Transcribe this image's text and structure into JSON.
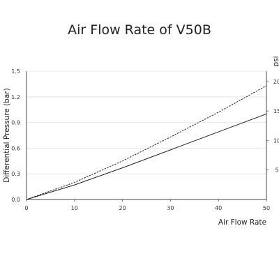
{
  "chart_data": {
    "type": "line",
    "title": "Air Flow Rate of V50B",
    "xlabel": "Air Flow Rate",
    "ylabel": "Differential Pressure (bar)",
    "y2label": "psi",
    "xlim": [
      0,
      50
    ],
    "ylim": [
      0,
      1.5
    ],
    "y2lim": [
      0,
      21.76
    ],
    "xticks": [
      0,
      10,
      20,
      30,
      40,
      50
    ],
    "yticks": [
      "0.0",
      "0.3",
      "0.6",
      "0.9",
      "1.2",
      "1.5"
    ],
    "y2ticks": [
      "5",
      "10",
      "15",
      "20"
    ],
    "grid": "horizontal",
    "series": [
      {
        "style": "dashed",
        "x": [
          0,
          10,
          20,
          30,
          40,
          50
        ],
        "y": [
          0,
          0.2,
          0.45,
          0.73,
          1.02,
          1.33
        ]
      },
      {
        "style": "solid",
        "x": [
          0,
          10,
          20,
          30,
          40,
          50
        ],
        "y": [
          0,
          0.17,
          0.37,
          0.58,
          0.79,
          1.0
        ]
      }
    ]
  }
}
